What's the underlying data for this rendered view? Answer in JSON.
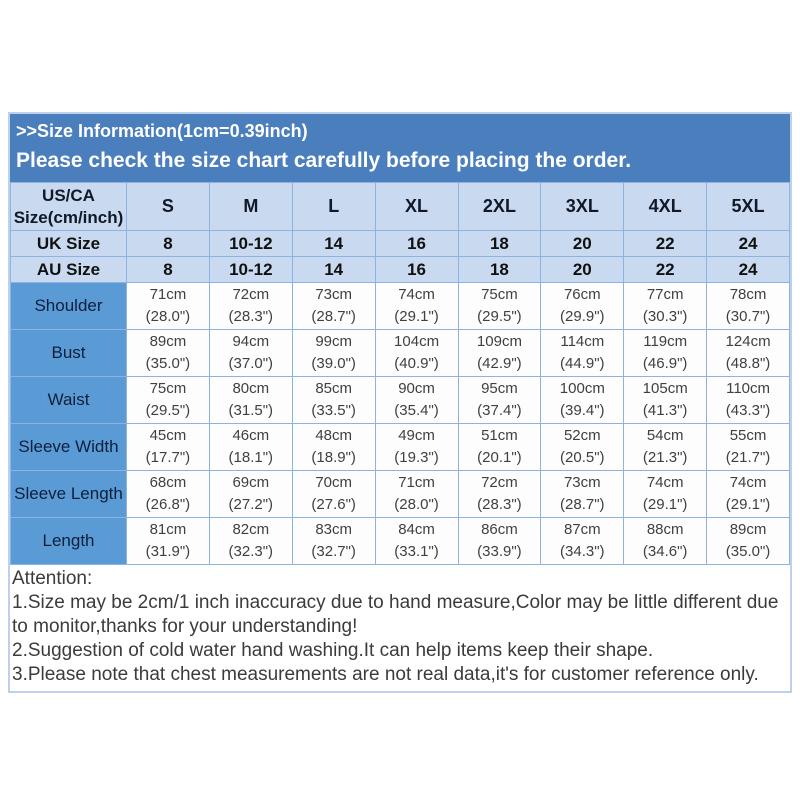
{
  "banner": {
    "line1": ">>Size Information(1cm=0.39inch)",
    "line2": "Please check the size chart carefully before placing the order."
  },
  "table": {
    "corner_line1": "US/CA",
    "corner_line2": "Size(cm/inch)",
    "size_headers": [
      "S",
      "M",
      "L",
      "XL",
      "2XL",
      "3XL",
      "4XL",
      "5XL"
    ],
    "uk_label": "UK Size",
    "uk_values": [
      "8",
      "10-12",
      "14",
      "16",
      "18",
      "20",
      "22",
      "24"
    ],
    "au_label": "AU  Size",
    "au_values": [
      "8",
      "10-12",
      "14",
      "16",
      "18",
      "20",
      "22",
      "24"
    ],
    "measurements": [
      {
        "label": "Shoulder",
        "cells": [
          {
            "cm": "71cm",
            "in": "(28.0\")"
          },
          {
            "cm": "72cm",
            "in": "(28.3\")"
          },
          {
            "cm": "73cm",
            "in": "(28.7\")"
          },
          {
            "cm": "74cm",
            "in": "(29.1\")"
          },
          {
            "cm": "75cm",
            "in": "(29.5\")"
          },
          {
            "cm": "76cm",
            "in": "(29.9\")"
          },
          {
            "cm": "77cm",
            "in": "(30.3\")"
          },
          {
            "cm": "78cm",
            "in": "(30.7\")"
          }
        ]
      },
      {
        "label": "Bust",
        "cells": [
          {
            "cm": "89cm",
            "in": "(35.0\")"
          },
          {
            "cm": "94cm",
            "in": "(37.0\")"
          },
          {
            "cm": "99cm",
            "in": "(39.0\")"
          },
          {
            "cm": "104cm",
            "in": "(40.9\")"
          },
          {
            "cm": "109cm",
            "in": "(42.9\")"
          },
          {
            "cm": "114cm",
            "in": "(44.9\")"
          },
          {
            "cm": "119cm",
            "in": "(46.9\")"
          },
          {
            "cm": "124cm",
            "in": "(48.8\")"
          }
        ]
      },
      {
        "label": "Waist",
        "cells": [
          {
            "cm": "75cm",
            "in": "(29.5\")"
          },
          {
            "cm": "80cm",
            "in": "(31.5\")"
          },
          {
            "cm": "85cm",
            "in": "(33.5\")"
          },
          {
            "cm": "90cm",
            "in": "(35.4\")"
          },
          {
            "cm": "95cm",
            "in": "(37.4\")"
          },
          {
            "cm": "100cm",
            "in": "(39.4\")"
          },
          {
            "cm": "105cm",
            "in": "(41.3\")"
          },
          {
            "cm": "110cm",
            "in": "(43.3\")"
          }
        ]
      },
      {
        "label": "Sleeve Width",
        "cells": [
          {
            "cm": "45cm",
            "in": "(17.7\")"
          },
          {
            "cm": "46cm",
            "in": "(18.1\")"
          },
          {
            "cm": "48cm",
            "in": "(18.9\")"
          },
          {
            "cm": "49cm",
            "in": "(19.3\")"
          },
          {
            "cm": "51cm",
            "in": "(20.1\")"
          },
          {
            "cm": "52cm",
            "in": "(20.5\")"
          },
          {
            "cm": "54cm",
            "in": "(21.3\")"
          },
          {
            "cm": "55cm",
            "in": "(21.7\")"
          }
        ]
      },
      {
        "label": "Sleeve Length",
        "cells": [
          {
            "cm": "68cm",
            "in": "(26.8\")"
          },
          {
            "cm": "69cm",
            "in": "(27.2\")"
          },
          {
            "cm": "70cm",
            "in": "(27.6\")"
          },
          {
            "cm": "71cm",
            "in": "(28.0\")"
          },
          {
            "cm": "72cm",
            "in": "(28.3\")"
          },
          {
            "cm": "73cm",
            "in": "(28.7\")"
          },
          {
            "cm": "74cm",
            "in": "(29.1\")"
          },
          {
            "cm": "74cm",
            "in": "(29.1\")"
          }
        ]
      },
      {
        "label": "Length",
        "cells": [
          {
            "cm": "81cm",
            "in": "(31.9\")"
          },
          {
            "cm": "82cm",
            "in": "(32.3\")"
          },
          {
            "cm": "83cm",
            "in": "(32.7\")"
          },
          {
            "cm": "84cm",
            "in": "(33.1\")"
          },
          {
            "cm": "86cm",
            "in": "(33.9\")"
          },
          {
            "cm": "87cm",
            "in": "(34.3\")"
          },
          {
            "cm": "88cm",
            "in": "(34.6\")"
          },
          {
            "cm": "89cm",
            "in": "(35.0\")"
          }
        ]
      }
    ]
  },
  "attention": {
    "title": "Attention:",
    "notes": [
      "1.Size may be 2cm/1 inch inaccuracy due to hand measure,Color may be little different due to monitor,thanks for your understanding!",
      "2.Suggestion of cold water hand washing.It can help items keep their shape.",
      "3.Please note that chest measurements are not real data,it's for customer reference only."
    ]
  },
  "colors": {
    "banner_bg": "#4a7ebc",
    "header_cell_bg": "#c9daf0",
    "label_cell_bg": "#5b9bd5",
    "grid_border": "#8db3e2",
    "value_text": "#404040"
  }
}
